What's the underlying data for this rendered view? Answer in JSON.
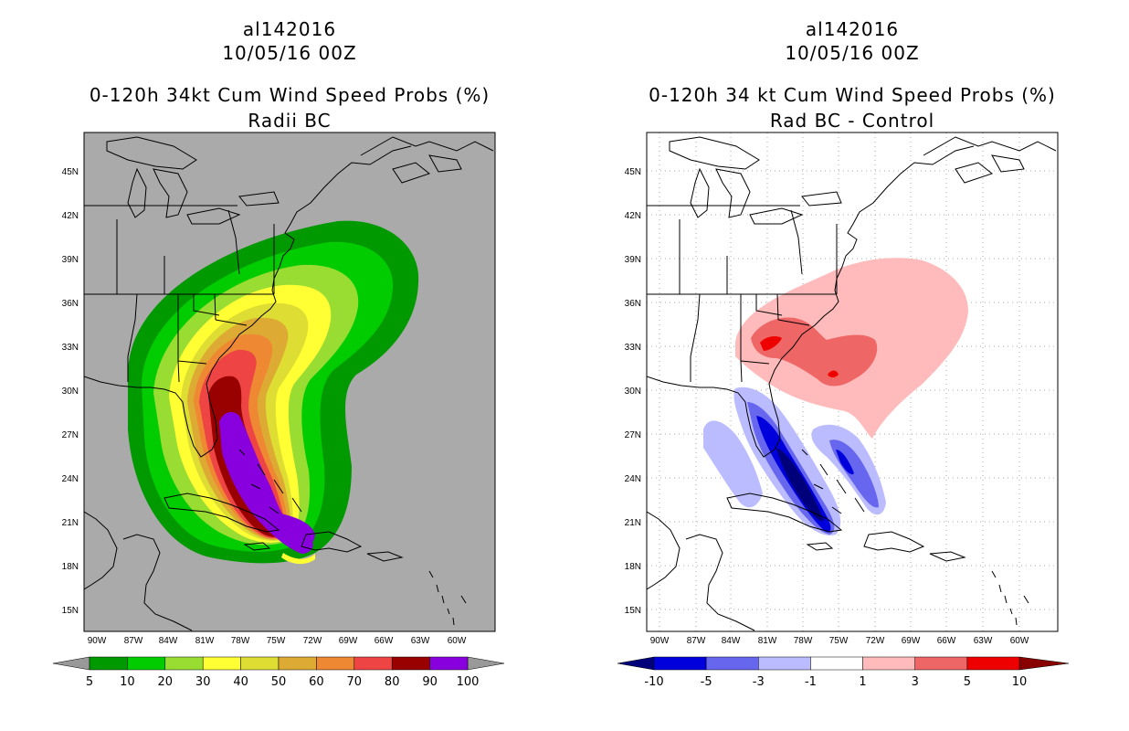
{
  "left_panel": {
    "storm_id": "al142016",
    "datetime": "10/05/16 00Z",
    "title": "0-120h 34kt Cum Wind Speed Probs (%)",
    "subtitle": "Radii BC",
    "colorbar": {
      "labels": [
        "5",
        "10",
        "20",
        "30",
        "40",
        "50",
        "60",
        "70",
        "80",
        "90",
        "100"
      ],
      "colors": [
        "#009900",
        "#00cc00",
        "#99dd33",
        "#ffff33",
        "#dddd33",
        "#ddaa33",
        "#ee8833",
        "#ee4444",
        "#990000",
        "#8800dd"
      ],
      "under_color": "#999999",
      "over_color": "#999999"
    }
  },
  "right_panel": {
    "storm_id": "al142016",
    "datetime": "10/05/16 00Z",
    "title": "0-120h 34 kt Cum Wind Speed Probs (%)",
    "subtitle": "Rad BC - Control",
    "colorbar": {
      "labels": [
        "-10",
        "-5",
        "-3",
        "-1",
        "1",
        "3",
        "5",
        "10"
      ],
      "colors": [
        "#0000dd",
        "#6666ee",
        "#bbbbff",
        "#ffffff",
        "#ffbbbb",
        "#ee6666",
        "#ee0000"
      ],
      "under_color": "#00007a",
      "over_color": "#880000"
    }
  },
  "axes": {
    "lat_labels": [
      "45N",
      "42N",
      "39N",
      "36N",
      "33N",
      "30N",
      "27N",
      "24N",
      "21N",
      "18N",
      "15N"
    ],
    "lon_labels": [
      "90W",
      "87W",
      "84W",
      "81W",
      "78W",
      "75W",
      "72W",
      "69W",
      "66W",
      "63W",
      "60W"
    ]
  },
  "colors": {
    "map_background_left": "#aaaaaa",
    "map_background_right": "#ffffff",
    "coastline": "#000000"
  }
}
